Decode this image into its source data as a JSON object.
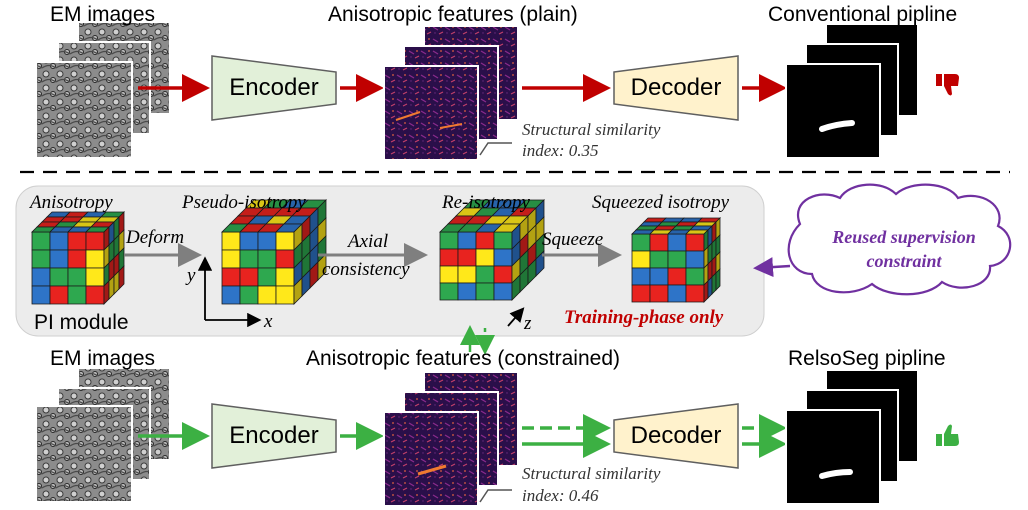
{
  "top": {
    "input_label": "EM images",
    "features_label": "Anisotropic features (plain)",
    "output_label": "Conventional pipline",
    "encoder": "Encoder",
    "decoder": "Decoder",
    "ssim_line1": "Structural similarity",
    "ssim_line2": "index: 0.35",
    "verdict_icon": "thumbs-down-icon",
    "verdict_color": "#c00000"
  },
  "pi_module": {
    "stage1": "Anisotropy",
    "stage2": "Pseudo-isotropy",
    "stage3": "Re-isotropy",
    "stage4": "Squeezed isotropy",
    "arrow1": "Deform",
    "arrow2_line1": "Axial",
    "arrow2_line2": "consistency",
    "arrow3": "Squeeze",
    "module_name": "PI module",
    "axis_x": "x",
    "axis_y": "y",
    "axis_z": "z",
    "training_note": "Training-phase only",
    "cloud_line1": "Reused supervision",
    "cloud_line2": "constraint"
  },
  "bottom": {
    "input_label": "EM images",
    "features_label": "Anisotropic features (constrained)",
    "output_label": "RelsoSeg pipline",
    "encoder": "Encoder",
    "decoder": "Decoder",
    "ssim_line1": "Structural similarity",
    "ssim_line2": "index: 0.46",
    "verdict_icon": "thumbs-up-icon",
    "verdict_color": "#3cb043"
  },
  "colors": {
    "red_arrow": "#c00000",
    "green_arrow": "#3cb043",
    "encoder_fill": "#e2f0d9",
    "decoder_fill": "#fff2cc",
    "panel_fill": "#ececec",
    "cloud_stroke": "#7030a0",
    "cube_red": "#e8231f",
    "cube_green": "#2ea84f",
    "cube_blue": "#2e74c8",
    "cube_yellow": "#ffe81a"
  }
}
